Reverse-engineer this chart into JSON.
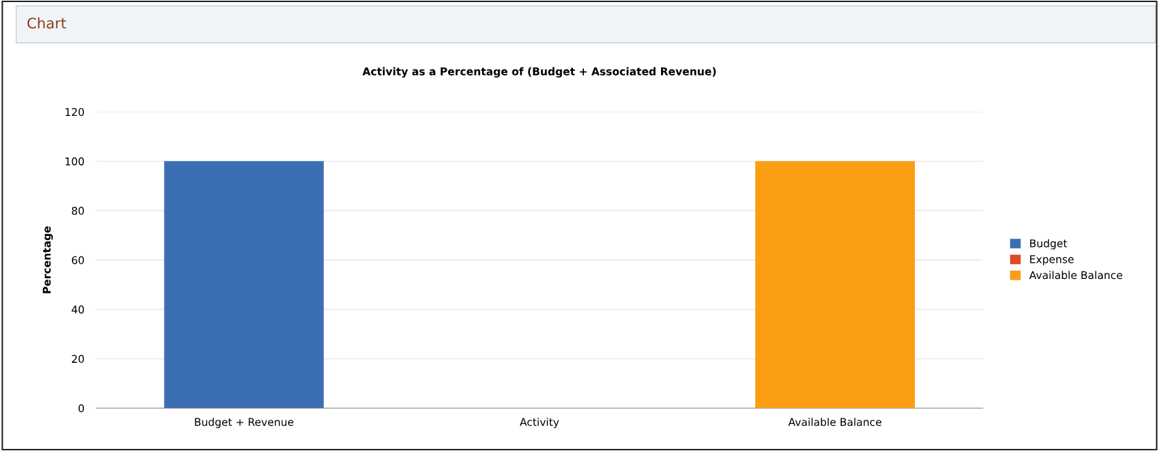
{
  "chart_data": {
    "type": "bar",
    "title": "Activity as a Percentage of (Budget + Associated Revenue)",
    "annotations": [
      "Chart"
    ],
    "ylabel": "Percentage",
    "categories": [
      "Budget + Revenue",
      "Activity",
      "Available Balance"
    ],
    "series": [
      {
        "name": "Budget",
        "color": "#3c6eb4",
        "values": [
          100,
          null,
          null
        ]
      },
      {
        "name": "Expense",
        "color": "#dc4a26",
        "values": [
          null,
          0,
          null
        ]
      },
      {
        "name": "Available Balance",
        "color": "#fc9e14",
        "values": [
          null,
          null,
          100
        ]
      }
    ],
    "ylim": [
      0,
      120
    ],
    "yticks": [
      0,
      20,
      40,
      60,
      80,
      100,
      120
    ],
    "grid": "y",
    "legend": "right"
  }
}
